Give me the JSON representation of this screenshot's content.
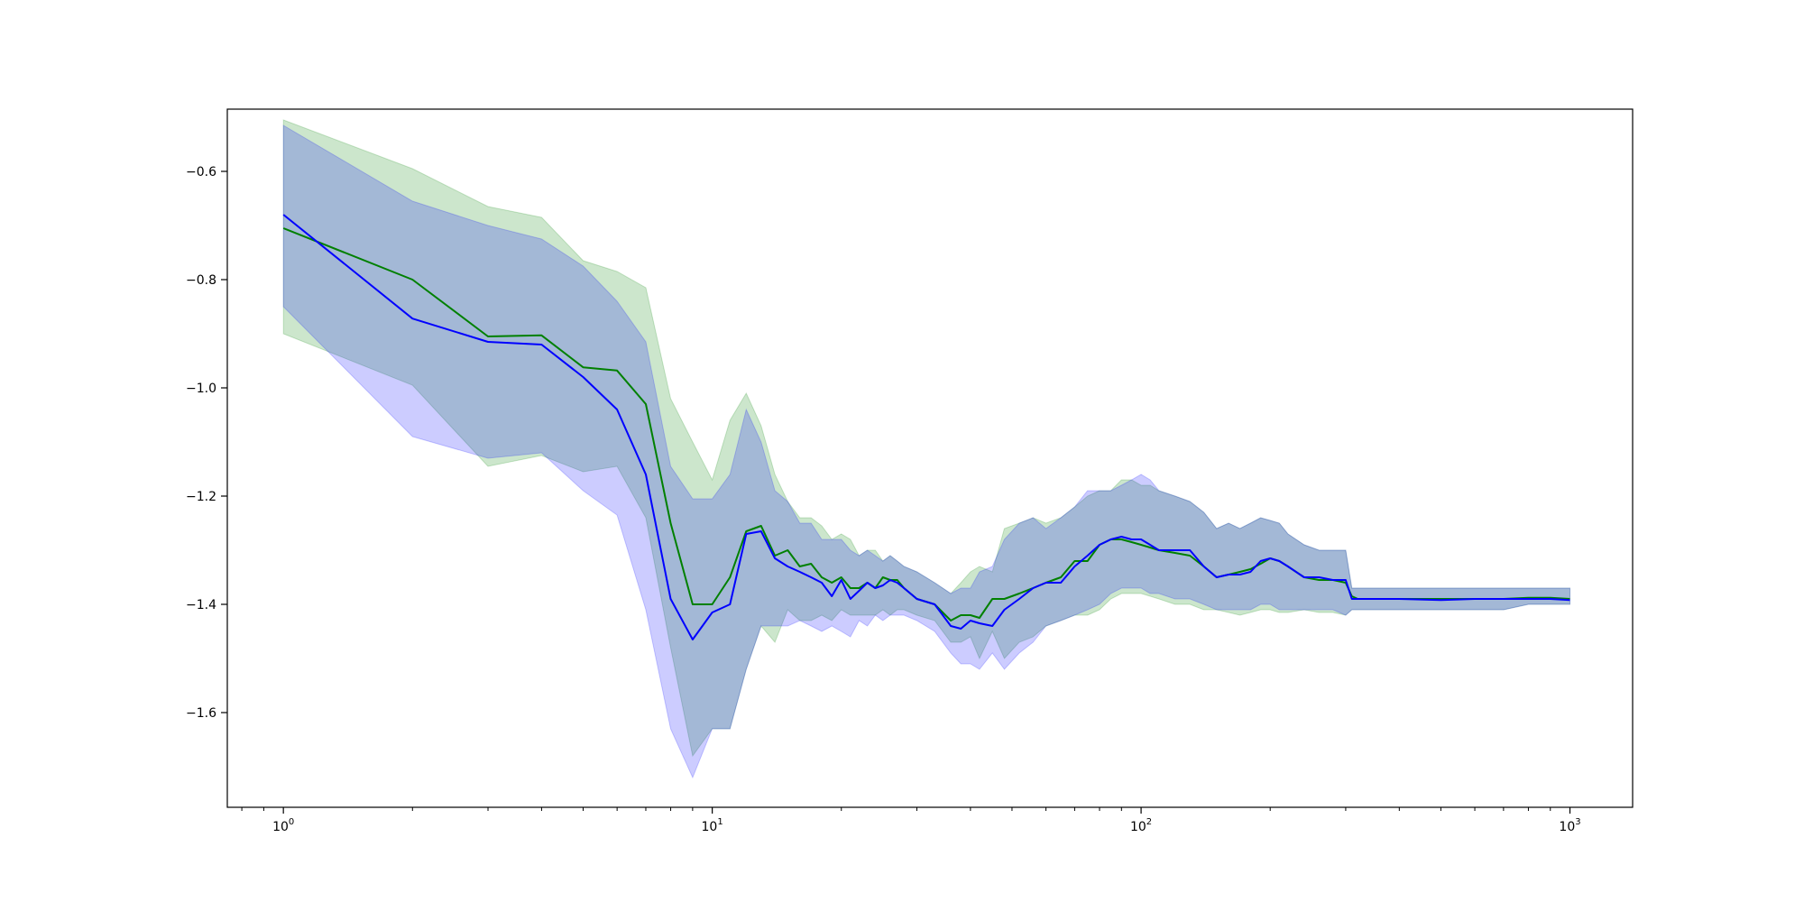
{
  "chart_data": {
    "type": "line",
    "title": "",
    "xlabel": "",
    "ylabel": "",
    "xscale": "log",
    "xlim": [
      0.74,
      1400
    ],
    "ylim": [
      -1.775,
      -0.485
    ],
    "grid": false,
    "legend": "none",
    "x_ticks": [
      {
        "value": 1,
        "base": "10",
        "exp": "0"
      },
      {
        "value": 10,
        "base": "10",
        "exp": "1"
      },
      {
        "value": 100,
        "base": "10",
        "exp": "2"
      },
      {
        "value": 1000,
        "base": "10",
        "exp": "3"
      }
    ],
    "y_ticks": [
      {
        "value": -0.6,
        "label": "−0.6"
      },
      {
        "value": -0.8,
        "label": "−0.8"
      },
      {
        "value": -1.0,
        "label": "−1.0"
      },
      {
        "value": -1.2,
        "label": "−1.2"
      },
      {
        "value": -1.4,
        "label": "−1.4"
      },
      {
        "value": -1.6,
        "label": "−1.6"
      }
    ],
    "series": [
      {
        "color": "#008000",
        "band_color": "#008000",
        "band_opacity": 0.2,
        "x": [
          1,
          2,
          3,
          4,
          5,
          6,
          7,
          8,
          9,
          10,
          11,
          12,
          13,
          14,
          15,
          16,
          17,
          18,
          19,
          20,
          21,
          22,
          23,
          24,
          25,
          26,
          27,
          28,
          30,
          33,
          36,
          38,
          40,
          42,
          45,
          48,
          52,
          56,
          60,
          65,
          70,
          75,
          80,
          85,
          90,
          95,
          100,
          105,
          110,
          120,
          130,
          140,
          150,
          160,
          170,
          180,
          190,
          200,
          210,
          220,
          240,
          260,
          280,
          300,
          310,
          320,
          400,
          500,
          600,
          700,
          800,
          900,
          1000
        ],
        "y": [
          -0.705,
          -0.8,
          -0.905,
          -0.903,
          -0.962,
          -0.968,
          -1.03,
          -1.25,
          -1.4,
          -1.4,
          -1.35,
          -1.265,
          -1.255,
          -1.31,
          -1.3,
          -1.33,
          -1.325,
          -1.35,
          -1.36,
          -1.35,
          -1.37,
          -1.37,
          -1.36,
          -1.37,
          -1.35,
          -1.355,
          -1.355,
          -1.37,
          -1.39,
          -1.4,
          -1.43,
          -1.42,
          -1.42,
          -1.425,
          -1.39,
          -1.39,
          -1.38,
          -1.37,
          -1.36,
          -1.35,
          -1.32,
          -1.32,
          -1.29,
          -1.28,
          -1.28,
          -1.285,
          -1.29,
          -1.295,
          -1.3,
          -1.305,
          -1.31,
          -1.33,
          -1.35,
          -1.345,
          -1.34,
          -1.335,
          -1.325,
          -1.315,
          -1.32,
          -1.33,
          -1.35,
          -1.355,
          -1.355,
          -1.36,
          -1.385,
          -1.39,
          -1.39,
          -1.39,
          -1.39,
          -1.39,
          -1.388,
          -1.388,
          -1.39
        ],
        "upper": [
          -0.505,
          -0.595,
          -0.665,
          -0.685,
          -0.765,
          -0.785,
          -0.815,
          -1.02,
          -1.1,
          -1.17,
          -1.06,
          -1.01,
          -1.07,
          -1.16,
          -1.21,
          -1.24,
          -1.24,
          -1.255,
          -1.28,
          -1.27,
          -1.28,
          -1.31,
          -1.3,
          -1.3,
          -1.32,
          -1.31,
          -1.32,
          -1.33,
          -1.34,
          -1.36,
          -1.38,
          -1.36,
          -1.34,
          -1.33,
          -1.34,
          -1.26,
          -1.25,
          -1.24,
          -1.25,
          -1.24,
          -1.22,
          -1.2,
          -1.19,
          -1.19,
          -1.17,
          -1.17,
          -1.18,
          -1.18,
          -1.19,
          -1.2,
          -1.21,
          -1.23,
          -1.26,
          -1.25,
          -1.26,
          -1.25,
          -1.24,
          -1.245,
          -1.25,
          -1.27,
          -1.29,
          -1.3,
          -1.3,
          -1.3,
          -1.37,
          -1.37,
          -1.37,
          -1.37,
          -1.37,
          -1.37,
          -1.37,
          -1.37,
          -1.37
        ],
        "lower": [
          -0.9,
          -0.995,
          -1.145,
          -1.125,
          -1.155,
          -1.145,
          -1.24,
          -1.48,
          -1.68,
          -1.63,
          -1.63,
          -1.52,
          -1.44,
          -1.47,
          -1.41,
          -1.43,
          -1.43,
          -1.42,
          -1.43,
          -1.41,
          -1.42,
          -1.42,
          -1.42,
          -1.42,
          -1.41,
          -1.42,
          -1.41,
          -1.41,
          -1.42,
          -1.43,
          -1.47,
          -1.47,
          -1.46,
          -1.5,
          -1.45,
          -1.5,
          -1.47,
          -1.46,
          -1.44,
          -1.43,
          -1.42,
          -1.42,
          -1.41,
          -1.39,
          -1.38,
          -1.38,
          -1.38,
          -1.385,
          -1.39,
          -1.4,
          -1.4,
          -1.41,
          -1.41,
          -1.415,
          -1.42,
          -1.415,
          -1.41,
          -1.41,
          -1.415,
          -1.415,
          -1.41,
          -1.415,
          -1.415,
          -1.42,
          -1.41,
          -1.41,
          -1.41,
          -1.41,
          -1.41,
          -1.41,
          -1.4,
          -1.4,
          -1.4
        ]
      },
      {
        "color": "#0000ff",
        "band_color": "#0000ff",
        "band_opacity": 0.2,
        "x": [
          1,
          2,
          3,
          4,
          5,
          6,
          7,
          8,
          9,
          10,
          11,
          12,
          13,
          14,
          15,
          16,
          17,
          18,
          19,
          20,
          21,
          22,
          23,
          24,
          25,
          26,
          27,
          28,
          30,
          33,
          36,
          38,
          40,
          42,
          45,
          48,
          52,
          56,
          60,
          65,
          70,
          75,
          80,
          85,
          90,
          95,
          100,
          105,
          110,
          120,
          130,
          140,
          150,
          160,
          170,
          180,
          190,
          200,
          210,
          220,
          240,
          260,
          280,
          300,
          310,
          320,
          400,
          500,
          600,
          700,
          800,
          900,
          1000
        ],
        "y": [
          -0.68,
          -0.872,
          -0.915,
          -0.92,
          -0.98,
          -1.04,
          -1.16,
          -1.39,
          -1.465,
          -1.415,
          -1.4,
          -1.27,
          -1.265,
          -1.315,
          -1.33,
          -1.34,
          -1.35,
          -1.36,
          -1.385,
          -1.355,
          -1.39,
          -1.375,
          -1.36,
          -1.37,
          -1.365,
          -1.355,
          -1.36,
          -1.37,
          -1.39,
          -1.4,
          -1.44,
          -1.445,
          -1.43,
          -1.435,
          -1.44,
          -1.41,
          -1.39,
          -1.37,
          -1.36,
          -1.36,
          -1.33,
          -1.31,
          -1.29,
          -1.28,
          -1.275,
          -1.28,
          -1.28,
          -1.29,
          -1.3,
          -1.3,
          -1.3,
          -1.33,
          -1.35,
          -1.345,
          -1.345,
          -1.34,
          -1.32,
          -1.315,
          -1.32,
          -1.33,
          -1.35,
          -1.35,
          -1.355,
          -1.355,
          -1.39,
          -1.39,
          -1.39,
          -1.392,
          -1.39,
          -1.39,
          -1.39,
          -1.39,
          -1.392
        ],
        "upper": [
          -0.515,
          -0.655,
          -0.7,
          -0.725,
          -0.775,
          -0.84,
          -0.915,
          -1.145,
          -1.205,
          -1.205,
          -1.16,
          -1.04,
          -1.1,
          -1.19,
          -1.21,
          -1.25,
          -1.25,
          -1.28,
          -1.28,
          -1.28,
          -1.3,
          -1.31,
          -1.3,
          -1.31,
          -1.32,
          -1.31,
          -1.32,
          -1.33,
          -1.34,
          -1.36,
          -1.38,
          -1.37,
          -1.37,
          -1.34,
          -1.33,
          -1.28,
          -1.25,
          -1.24,
          -1.26,
          -1.24,
          -1.22,
          -1.19,
          -1.19,
          -1.19,
          -1.18,
          -1.17,
          -1.16,
          -1.17,
          -1.19,
          -1.2,
          -1.21,
          -1.23,
          -1.26,
          -1.25,
          -1.26,
          -1.25,
          -1.24,
          -1.245,
          -1.25,
          -1.27,
          -1.29,
          -1.3,
          -1.3,
          -1.3,
          -1.37,
          -1.37,
          -1.37,
          -1.37,
          -1.37,
          -1.37,
          -1.37,
          -1.37,
          -1.37
        ],
        "lower": [
          -0.85,
          -1.09,
          -1.13,
          -1.12,
          -1.19,
          -1.235,
          -1.41,
          -1.63,
          -1.72,
          -1.63,
          -1.63,
          -1.52,
          -1.44,
          -1.44,
          -1.44,
          -1.43,
          -1.44,
          -1.45,
          -1.44,
          -1.45,
          -1.46,
          -1.43,
          -1.44,
          -1.42,
          -1.43,
          -1.42,
          -1.42,
          -1.42,
          -1.43,
          -1.45,
          -1.49,
          -1.51,
          -1.51,
          -1.52,
          -1.49,
          -1.52,
          -1.49,
          -1.47,
          -1.44,
          -1.43,
          -1.42,
          -1.41,
          -1.4,
          -1.38,
          -1.37,
          -1.37,
          -1.37,
          -1.38,
          -1.38,
          -1.39,
          -1.39,
          -1.4,
          -1.41,
          -1.41,
          -1.41,
          -1.41,
          -1.4,
          -1.4,
          -1.41,
          -1.41,
          -1.41,
          -1.41,
          -1.41,
          -1.42,
          -1.41,
          -1.41,
          -1.41,
          -1.41,
          -1.41,
          -1.41,
          -1.4,
          -1.4,
          -1.4
        ]
      }
    ]
  }
}
